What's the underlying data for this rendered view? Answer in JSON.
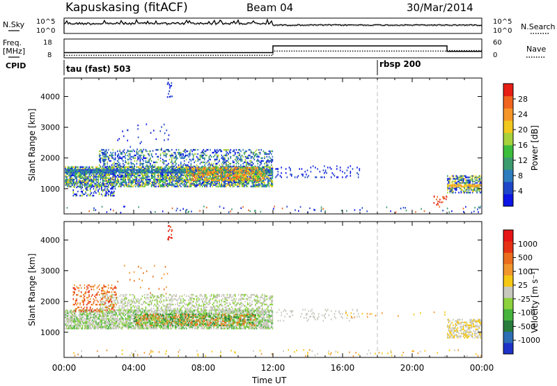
{
  "header": {
    "station": "Kapuskasing (fitACF)",
    "beam": "Beam 04",
    "date": "30/Mar/2014"
  },
  "labels": {
    "nsky": "N.Sky",
    "nsearch": "N.Search",
    "freq": "Freq.",
    "mhz": "[MHz]",
    "nave": "Nave",
    "cpid": "CPID",
    "cpid_1": "tau (fast) 503",
    "cpid_2": "rbsp 200",
    "xlabel": "Time UT"
  },
  "colors": {
    "axis": "#000000",
    "gray_scatter": "#c8c8be",
    "dashed_marker": "#bdbdbd"
  },
  "chart_data": [
    {
      "type": "line",
      "panel": "noise",
      "left_ticks": [
        "10^5",
        "10^0"
      ],
      "right_ticks": [
        "10^5",
        "10^0"
      ],
      "series": [
        {
          "name": "N.Sky",
          "style": "solid"
        },
        {
          "name": "N.Search",
          "style": "dotted"
        }
      ]
    },
    {
      "type": "line",
      "panel": "frequency",
      "left_ticks": [
        "18",
        "8"
      ],
      "right_ticks": [
        "60",
        "0"
      ],
      "x": [
        0,
        12,
        12,
        22,
        22,
        24
      ],
      "freq_mhz": [
        10.5,
        10.5,
        14.2,
        14.2,
        11.2,
        11.2
      ],
      "nave": [
        6,
        6,
        20,
        20,
        22,
        22
      ]
    },
    {
      "type": "heatmap",
      "panel": "power",
      "xlim": [
        0,
        24
      ],
      "xticks": [
        "00:00",
        "04:00",
        "08:00",
        "12:00",
        "16:00",
        "20:00",
        "00:00"
      ],
      "ylim": [
        180,
        4600
      ],
      "yticks": [
        1000,
        2000,
        3000,
        4000
      ],
      "ylabel": "Slant Range [km]",
      "colorbar_label": "Power [dB]",
      "colorbar_ticks": [
        "4",
        "8",
        "12",
        "16",
        "20",
        "24",
        "28"
      ],
      "colorbar_colors": [
        "#0c14e6",
        "#1e46c8",
        "#2d7dbe",
        "#3c9c6e",
        "#3cbe3c",
        "#a8d23c",
        "#f0c81e",
        "#f59628",
        "#f0641e",
        "#e61e14"
      ]
    },
    {
      "type": "heatmap",
      "panel": "velocity",
      "xlim": [
        0,
        24
      ],
      "xticks": [
        "00:00",
        "04:00",
        "08:00",
        "12:00",
        "16:00",
        "20:00",
        "00:00"
      ],
      "ylim": [
        180,
        4600
      ],
      "yticks": [
        1000,
        2000,
        3000,
        4000
      ],
      "ylabel": "Slant Range [km]",
      "colorbar_label": "Velocity [m s⁻¹]",
      "colorbar_ticks": [
        "1000",
        "500",
        "100",
        "25",
        "-25",
        "-100",
        "-500",
        "-1000"
      ],
      "colorbar_colors": [
        "#1e32c8",
        "#2d6eb4",
        "#287d3c",
        "#46b43c",
        "#8cd23c",
        "#c8c8be",
        "#f5c814",
        "#f0962d",
        "#eb6e1e",
        "#e63214",
        "#e61414"
      ]
    }
  ]
}
